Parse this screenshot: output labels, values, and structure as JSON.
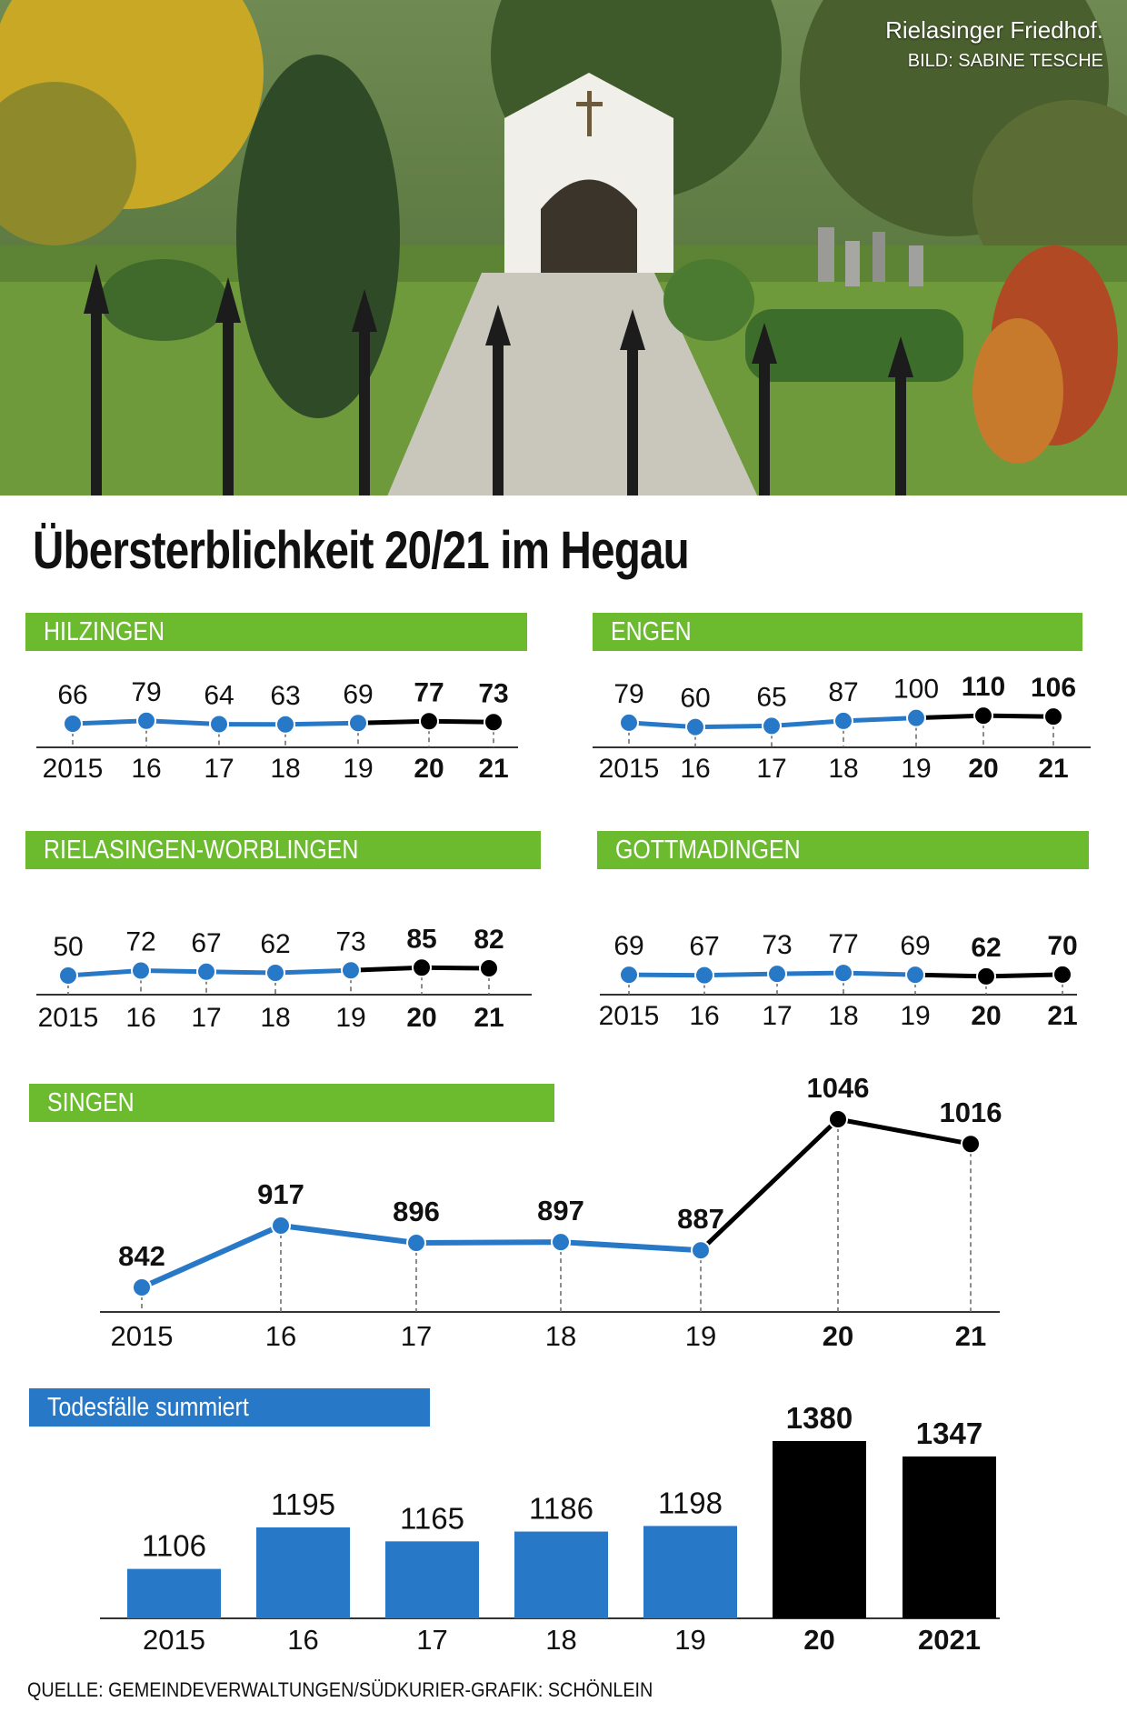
{
  "photo": {
    "caption": "Rielasinger Friedhof.",
    "credit": "BILD: SABINE TESCHE"
  },
  "title": "Übersterblichkeit 20/21 im Hegau",
  "colors": {
    "green_band": "#6cbb2f",
    "blue_band": "#2878c8",
    "series_blue": "#2878c8",
    "series_black": "#000000"
  },
  "source": "QUELLE: GEMEINDEVERWALTUNGEN/SÜDKURIER-GRAFIK: SCHÖNLEIN",
  "chart_data": [
    {
      "type": "line",
      "title": "HILZINGEN",
      "x": [
        "2015",
        "16",
        "17",
        "18",
        "19",
        "20",
        "21"
      ],
      "values": [
        66,
        79,
        64,
        63,
        69,
        77,
        73
      ],
      "highlight_from_index": 5,
      "colors": [
        "#2878c8",
        "#000000"
      ]
    },
    {
      "type": "line",
      "title": "ENGEN",
      "x": [
        "2015",
        "16",
        "17",
        "18",
        "19",
        "20",
        "21"
      ],
      "values": [
        79,
        60,
        65,
        87,
        100,
        110,
        106
      ],
      "highlight_from_index": 5,
      "colors": [
        "#2878c8",
        "#000000"
      ]
    },
    {
      "type": "line",
      "title": "RIELASINGEN-WORBLINGEN",
      "x": [
        "2015",
        "16",
        "17",
        "18",
        "19",
        "20",
        "21"
      ],
      "values": [
        50,
        72,
        67,
        62,
        73,
        85,
        82
      ],
      "highlight_from_index": 5,
      "colors": [
        "#2878c8",
        "#000000"
      ]
    },
    {
      "type": "line",
      "title": "GOTTMADINGEN",
      "x": [
        "2015",
        "16",
        "17",
        "18",
        "19",
        "20",
        "21"
      ],
      "values": [
        69,
        67,
        73,
        77,
        69,
        62,
        70
      ],
      "highlight_from_index": 5,
      "colors": [
        "#2878c8",
        "#000000"
      ]
    },
    {
      "type": "line",
      "title": "SINGEN",
      "x": [
        "2015",
        "16",
        "17",
        "18",
        "19",
        "20",
        "21"
      ],
      "values": [
        842,
        917,
        896,
        897,
        887,
        1046,
        1016
      ],
      "highlight_from_index": 5,
      "colors": [
        "#2878c8",
        "#000000"
      ]
    },
    {
      "type": "bar",
      "title": "Todesfälle summiert",
      "categories": [
        "2015",
        "16",
        "17",
        "18",
        "19",
        "20",
        "2021"
      ],
      "values": [
        1106,
        1195,
        1165,
        1186,
        1198,
        1380,
        1347
      ],
      "highlight_from_index": 5,
      "colors": [
        "#2878c8",
        "#000000"
      ]
    }
  ]
}
